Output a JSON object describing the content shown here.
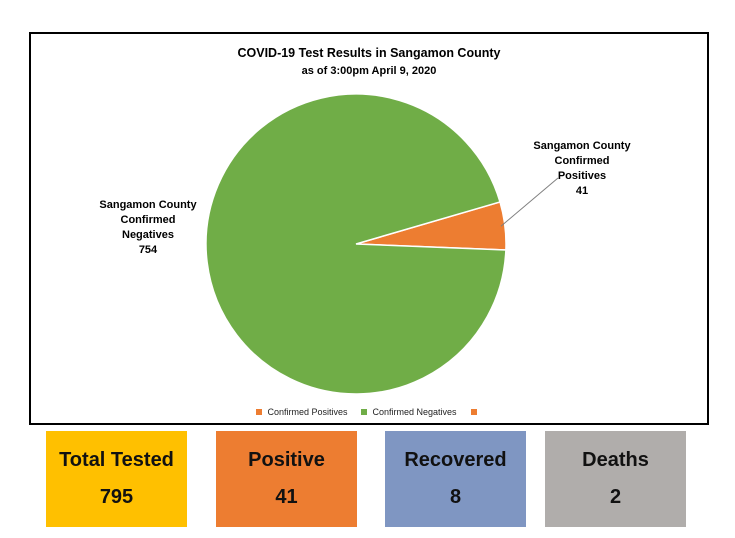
{
  "chart_data": {
    "type": "pie",
    "title": "COVID-19 Test Results in Sangamon County",
    "subtitle": "as of 3:00pm April 9, 2020",
    "slices": [
      {
        "name": "Confirmed Positives",
        "value": 41,
        "color": "#ed7d31"
      },
      {
        "name": "Confirmed Negatives",
        "value": 754,
        "color": "#70ad47"
      }
    ],
    "data_labels": {
      "positives": {
        "line1": "Sangamon County",
        "line2": "Confirmed",
        "line3": "Positives",
        "value": "41"
      },
      "negatives": {
        "line1": "Sangamon County",
        "line2": "Confirmed",
        "line3": "Negatives",
        "value": "754"
      }
    },
    "legend": {
      "position": "bottom",
      "items": [
        {
          "label": "Confirmed Positives",
          "color": "#ed7d31"
        },
        {
          "label": "Confirmed Negatives",
          "color": "#70ad47"
        },
        {
          "label": "",
          "color": "#ed7d31"
        }
      ]
    }
  },
  "stats": {
    "total": {
      "label": "Total Tested",
      "value": "795",
      "color": "#ffc000"
    },
    "positive": {
      "label": "Positive",
      "value": "41",
      "color": "#ed7d31"
    },
    "recovered": {
      "label": "Recovered",
      "value": "8",
      "color": "#7f96c2"
    },
    "deaths": {
      "label": "Deaths",
      "value": "2",
      "color": "#b0adab"
    }
  }
}
